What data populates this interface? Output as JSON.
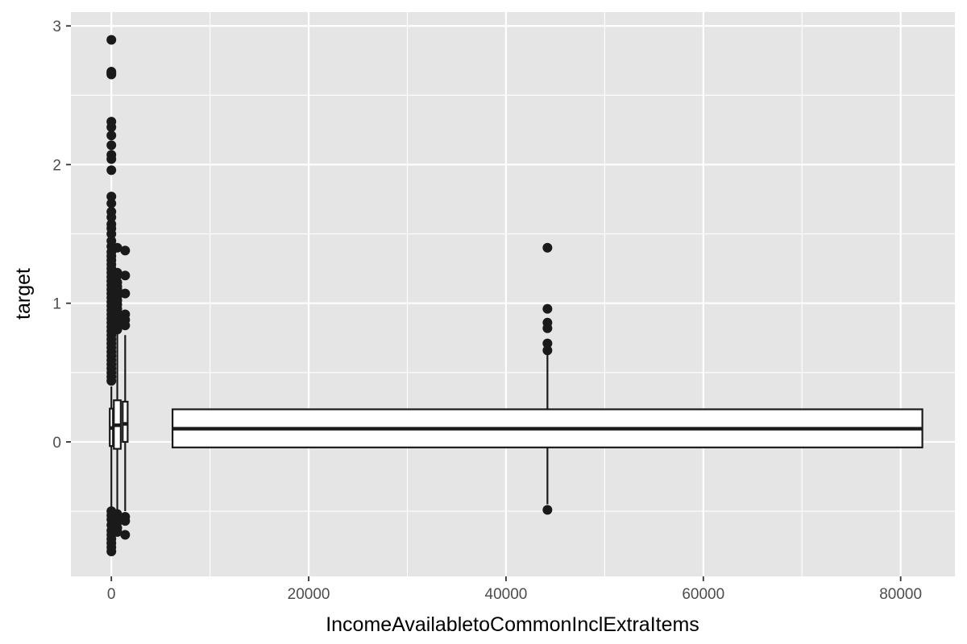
{
  "chart_data": {
    "type": "boxplot",
    "xlabel": "IncomeAvailabletoCommonInclExtraItems",
    "ylabel": "target",
    "xlim": [
      -4100,
      85500
    ],
    "ylim": [
      -0.97,
      3.1
    ],
    "x_ticks": [
      0,
      20000,
      40000,
      60000,
      80000
    ],
    "x_tick_labels": [
      "0",
      "20000",
      "40000",
      "60000",
      "80000"
    ],
    "y_ticks": [
      0,
      1,
      2,
      3
    ],
    "y_tick_labels": [
      "0",
      "1",
      "2",
      "3"
    ],
    "grid": true,
    "colors": {
      "panel_background": "#e5e5e5",
      "grid_line": "#ffffff",
      "box_fill": "#ffffff",
      "box_line": "#1a1a1a",
      "point": "#1a1a1a",
      "tick_label": "#4d4d4d",
      "axis_title": "#000000"
    },
    "boxes": [
      {
        "group_center": 0,
        "width": 300,
        "q1": -0.03,
        "median": 0.1,
        "q3": 0.24,
        "whisker_low": -0.48,
        "whisker_high": 0.4,
        "outliers": [
          2.9,
          2.67,
          2.66,
          2.65,
          2.31,
          2.27,
          2.21,
          2.14,
          2.07,
          2.04,
          1.96,
          1.77,
          1.72,
          1.66,
          1.62,
          1.57,
          1.54,
          1.5,
          1.45,
          1.41,
          1.37,
          1.34,
          1.31,
          1.28,
          1.25,
          1.22,
          1.19,
          1.16,
          1.13,
          1.1,
          1.07,
          1.04,
          1.01,
          0.98,
          0.95,
          0.92,
          0.89,
          0.86,
          0.83,
          0.8,
          0.77,
          0.74,
          0.71,
          0.68,
          0.65,
          0.62,
          0.59,
          0.56,
          0.53,
          0.5,
          0.47,
          0.44,
          -0.5,
          -0.53,
          -0.56,
          -0.6,
          -0.64,
          -0.67,
          -0.7,
          -0.73,
          -0.76,
          -0.79
        ]
      },
      {
        "group_center": 600,
        "width": 700,
        "q1": -0.05,
        "median": 0.12,
        "q3": 0.3,
        "whisker_low": -0.5,
        "whisker_high": 0.78,
        "outliers": [
          1.4,
          1.22,
          1.2,
          1.15,
          1.12,
          1.1,
          1.08,
          1.05,
          1.02,
          0.99,
          0.96,
          0.93,
          0.9,
          0.87,
          0.84,
          0.81,
          -0.52,
          -0.55,
          -0.58,
          -0.62,
          -0.65
        ]
      },
      {
        "group_center": 1400,
        "width": 500,
        "q1": 0.0,
        "median": 0.13,
        "q3": 0.29,
        "whisker_low": -0.5,
        "whisker_high": 0.77,
        "outliers": [
          1.38,
          1.2,
          1.07,
          0.92,
          0.88,
          0.84,
          -0.54,
          -0.57,
          -0.67
        ]
      },
      {
        "group_center": 44200,
        "width": 76000,
        "q1": -0.04,
        "median": 0.095,
        "q3": 0.235,
        "whisker_low": -0.45,
        "whisker_high": 0.63,
        "outliers": [
          1.4,
          0.96,
          0.86,
          0.82,
          0.71,
          0.66,
          -0.49
        ]
      }
    ]
  }
}
